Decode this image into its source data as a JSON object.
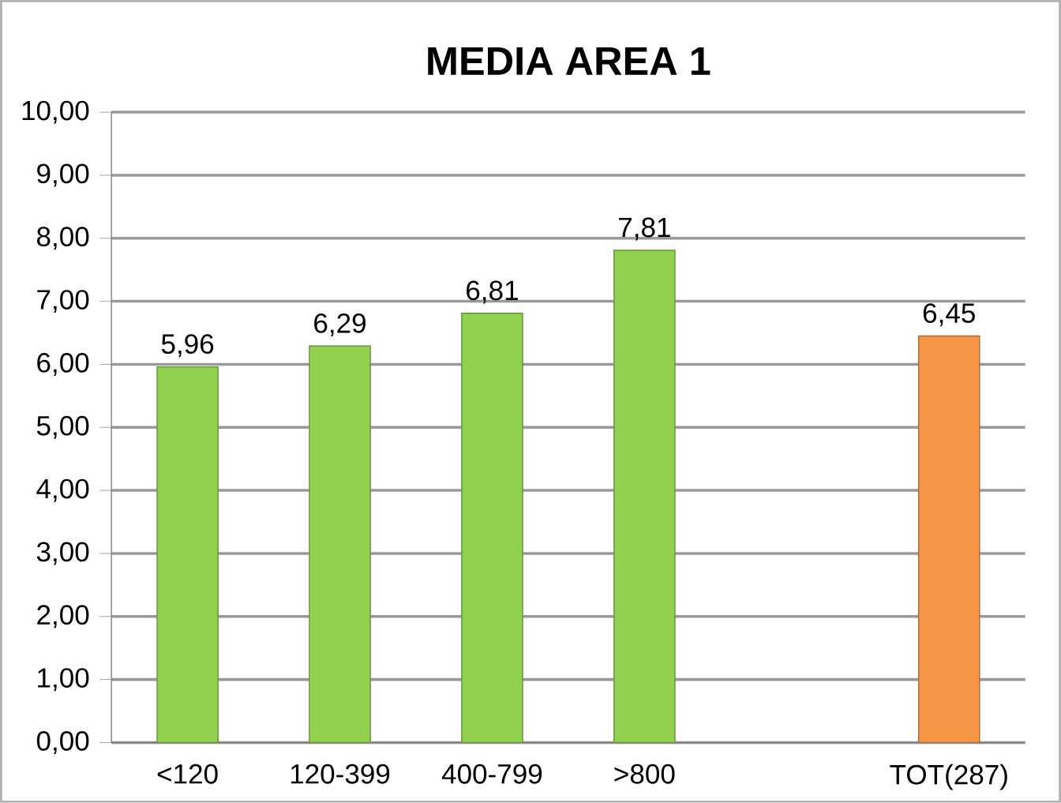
{
  "chart_data": {
    "type": "bar",
    "title": "MEDIA AREA 1",
    "categories": [
      "<120",
      "120-399",
      "400-799",
      ">800",
      null,
      "TOT(287)"
    ],
    "values": [
      5.96,
      6.29,
      6.81,
      7.81,
      null,
      6.45
    ],
    "colors": [
      "#92d050",
      "#92d050",
      "#92d050",
      "#92d050",
      "#92d050",
      "#f79646"
    ],
    "value_labels": [
      "5,96",
      "6,29",
      "6,81",
      "7,81",
      null,
      "6,45"
    ],
    "ylim": [
      0,
      10
    ],
    "yticks": [
      {
        "value": 0,
        "label": "0,00"
      },
      {
        "value": 1,
        "label": "1,00"
      },
      {
        "value": 2,
        "label": "2,00"
      },
      {
        "value": 3,
        "label": "3,00"
      },
      {
        "value": 4,
        "label": "4,00"
      },
      {
        "value": 5,
        "label": "5,00"
      },
      {
        "value": 6,
        "label": "6,00"
      },
      {
        "value": 7,
        "label": "7,00"
      },
      {
        "value": 8,
        "label": "8,00"
      },
      {
        "value": 9,
        "label": "9,00"
      },
      {
        "value": 10,
        "label": "10,00"
      }
    ],
    "grid": "y"
  }
}
